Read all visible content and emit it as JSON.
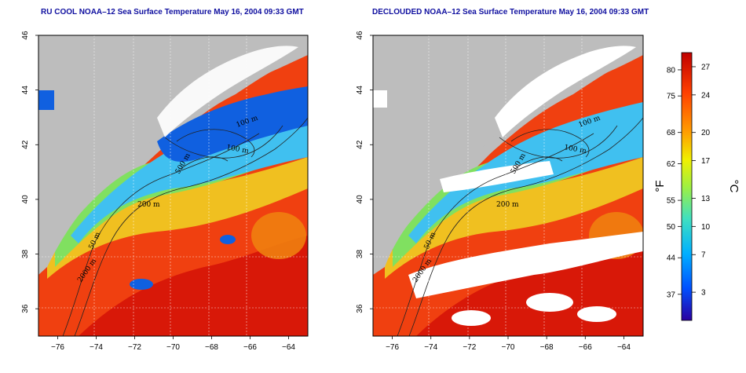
{
  "panels": [
    {
      "title": "RU COOL NOAA–12 Sea Surface Temperature May 16, 2004 09:33 GMT",
      "contour_labels": [
        "100 m",
        "100 m",
        "500 m",
        "200 m",
        "50 m",
        "2000 m"
      ]
    },
    {
      "title": "DECLOUDED NOAA–12 Sea Surface Temperature May 16, 2004 09:33 GMT",
      "contour_labels": [
        "100 m",
        "100 m",
        "500 m",
        "200 m",
        "50 m",
        "2000 m"
      ]
    }
  ],
  "axes": {
    "x_ticks": [
      "−76",
      "−74",
      "−72",
      "−70",
      "−68",
      "−66",
      "−64"
    ],
    "y_ticks": [
      "36",
      "38",
      "40",
      "42",
      "44",
      "46"
    ]
  },
  "colorbar": {
    "fahrenheit_ticks": [
      "80",
      "75",
      "68",
      "62",
      "55",
      "50",
      "44",
      "37"
    ],
    "celsius_ticks": [
      "27",
      "24",
      "20",
      "17",
      "13",
      "10",
      "7",
      "3"
    ],
    "fahrenheit_unit": "°F",
    "celsius_unit": "°C",
    "colors": [
      "#2a00a0",
      "#0050ff",
      "#00b0ff",
      "#40e0c0",
      "#a0f040",
      "#f0f000",
      "#ffa000",
      "#ff4000",
      "#c00000"
    ]
  },
  "colors": {
    "land": "#bdbdbd",
    "cloud": "#ffffff",
    "cold": "#1060e0",
    "cool": "#40c0f0",
    "mild": "#80e060",
    "warm": "#f0c020",
    "hot": "#f04010",
    "hotter": "#d81808"
  }
}
